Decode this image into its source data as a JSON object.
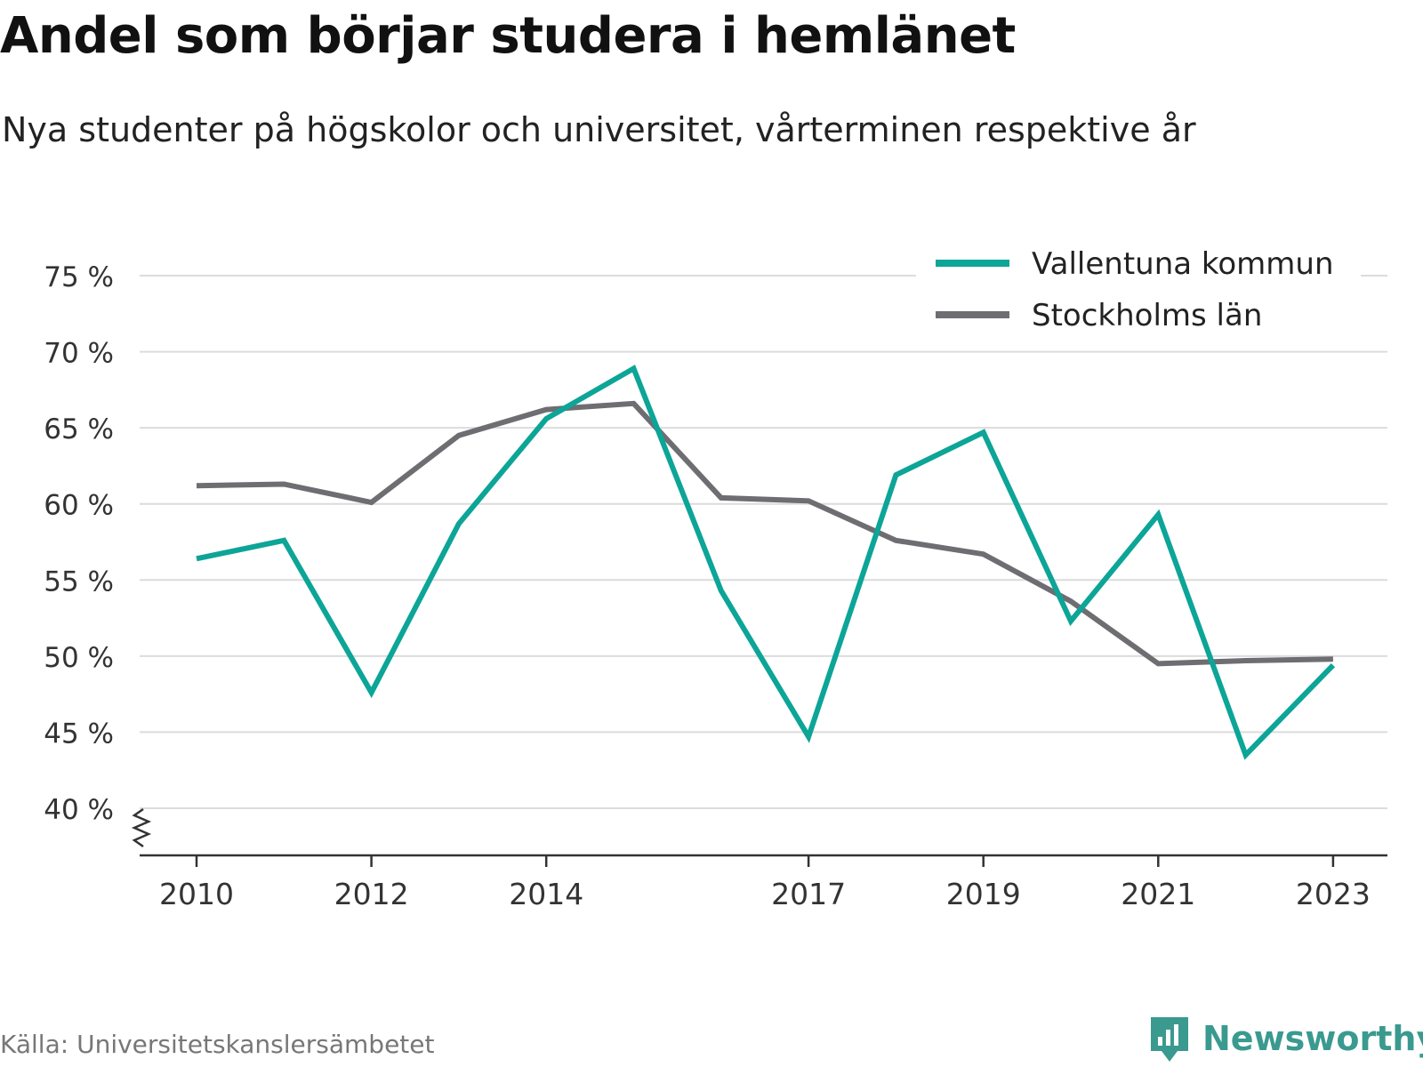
{
  "title": "Andel som börjar studera i hemlänet",
  "subtitle": "Nya studenter på högskolor och universitet, vårterminen respektive år",
  "source": "Källa: Universitetskanslersämbetet",
  "brand": {
    "name": "Newsworthy",
    "icon": "newsworthy-chart-logo-icon",
    "color": "#3a9a8f"
  },
  "chart_data": {
    "type": "line",
    "x": [
      2010,
      2011,
      2012,
      2013,
      2014,
      2015,
      2016,
      2017,
      2018,
      2019,
      2020,
      2021,
      2022,
      2023
    ],
    "x_tick_labels": [
      "2010",
      "2012",
      "2014",
      "2017",
      "2019",
      "2021",
      "2023"
    ],
    "y_tick_labels": [
      "75 %",
      "70 %",
      "65 %",
      "60 %",
      "55 %",
      "50 %",
      "45 %",
      "40 %"
    ],
    "y_ticks": [
      75,
      70,
      65,
      60,
      55,
      50,
      45,
      40
    ],
    "ylim": [
      40,
      75
    ],
    "y_axis_break": true,
    "grid": true,
    "legend_position": "top-right",
    "series": [
      {
        "name": "Vallentuna kommun",
        "color": "#0ca597",
        "values": [
          56.4,
          57.6,
          47.6,
          58.7,
          65.6,
          68.9,
          54.3,
          44.7,
          61.9,
          64.7,
          52.3,
          59.3,
          43.5,
          49.4
        ]
      },
      {
        "name": "Stockholms län",
        "color": "#6e6d72",
        "values": [
          61.2,
          61.3,
          60.1,
          64.5,
          66.2,
          66.6,
          60.4,
          60.2,
          57.6,
          56.7,
          53.6,
          49.5,
          49.7,
          49.8
        ]
      }
    ]
  }
}
